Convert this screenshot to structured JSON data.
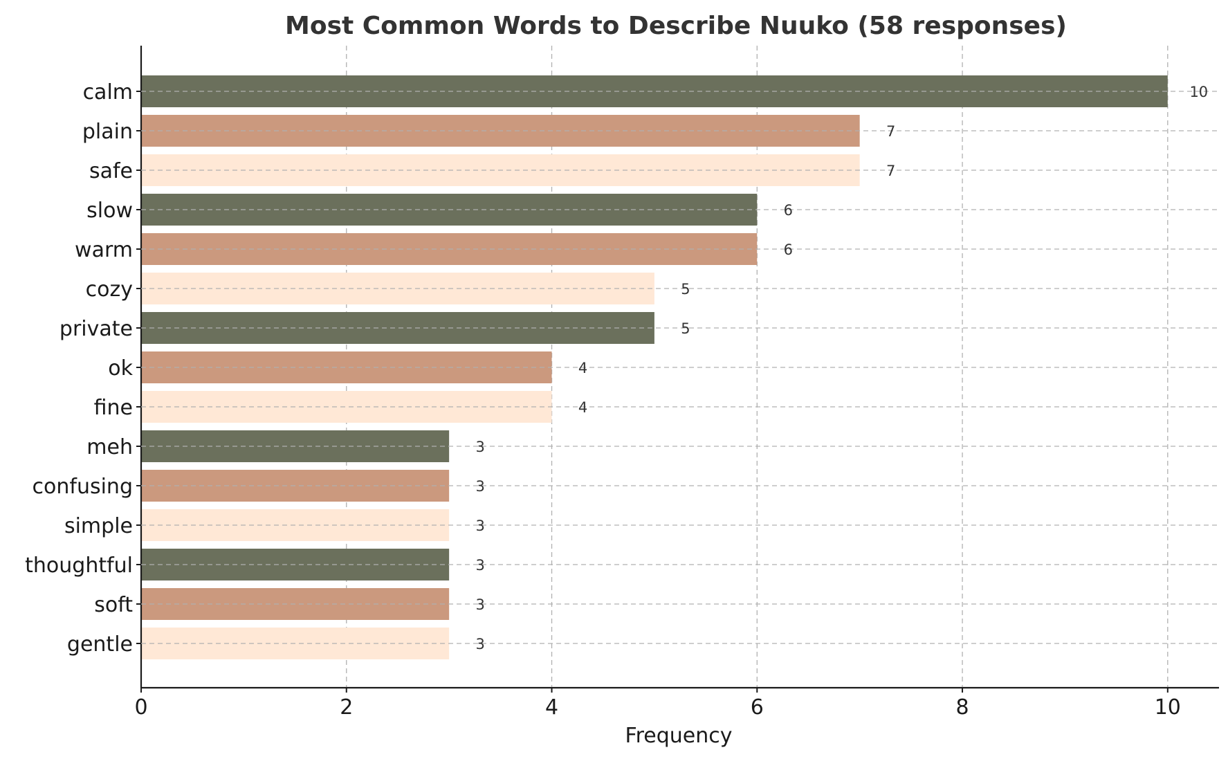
{
  "chart_data": {
    "type": "bar",
    "orientation": "horizontal",
    "title": "Most Common Words to Describe Nuuko (58 responses)",
    "xlabel": "Frequency",
    "ylabel": "",
    "xlim": [
      0,
      10.5
    ],
    "xticks": [
      0,
      2,
      4,
      6,
      8,
      10
    ],
    "grid": true,
    "categories": [
      "calm",
      "plain",
      "safe",
      "slow",
      "warm",
      "cozy",
      "private",
      "ok",
      "fine",
      "meh",
      "confusing",
      "simple",
      "thoughtful",
      "soft",
      "gentle"
    ],
    "values": [
      10,
      7,
      7,
      6,
      6,
      5,
      5,
      4,
      4,
      3,
      3,
      3,
      3,
      3,
      3
    ],
    "value_labels": [
      "10",
      "7",
      "7",
      "6",
      "6",
      "5",
      "5",
      "4",
      "4",
      "3",
      "3",
      "3",
      "3",
      "3",
      "3"
    ],
    "colors": [
      "#6b705c",
      "#cb997e",
      "#ffe8d6"
    ]
  }
}
